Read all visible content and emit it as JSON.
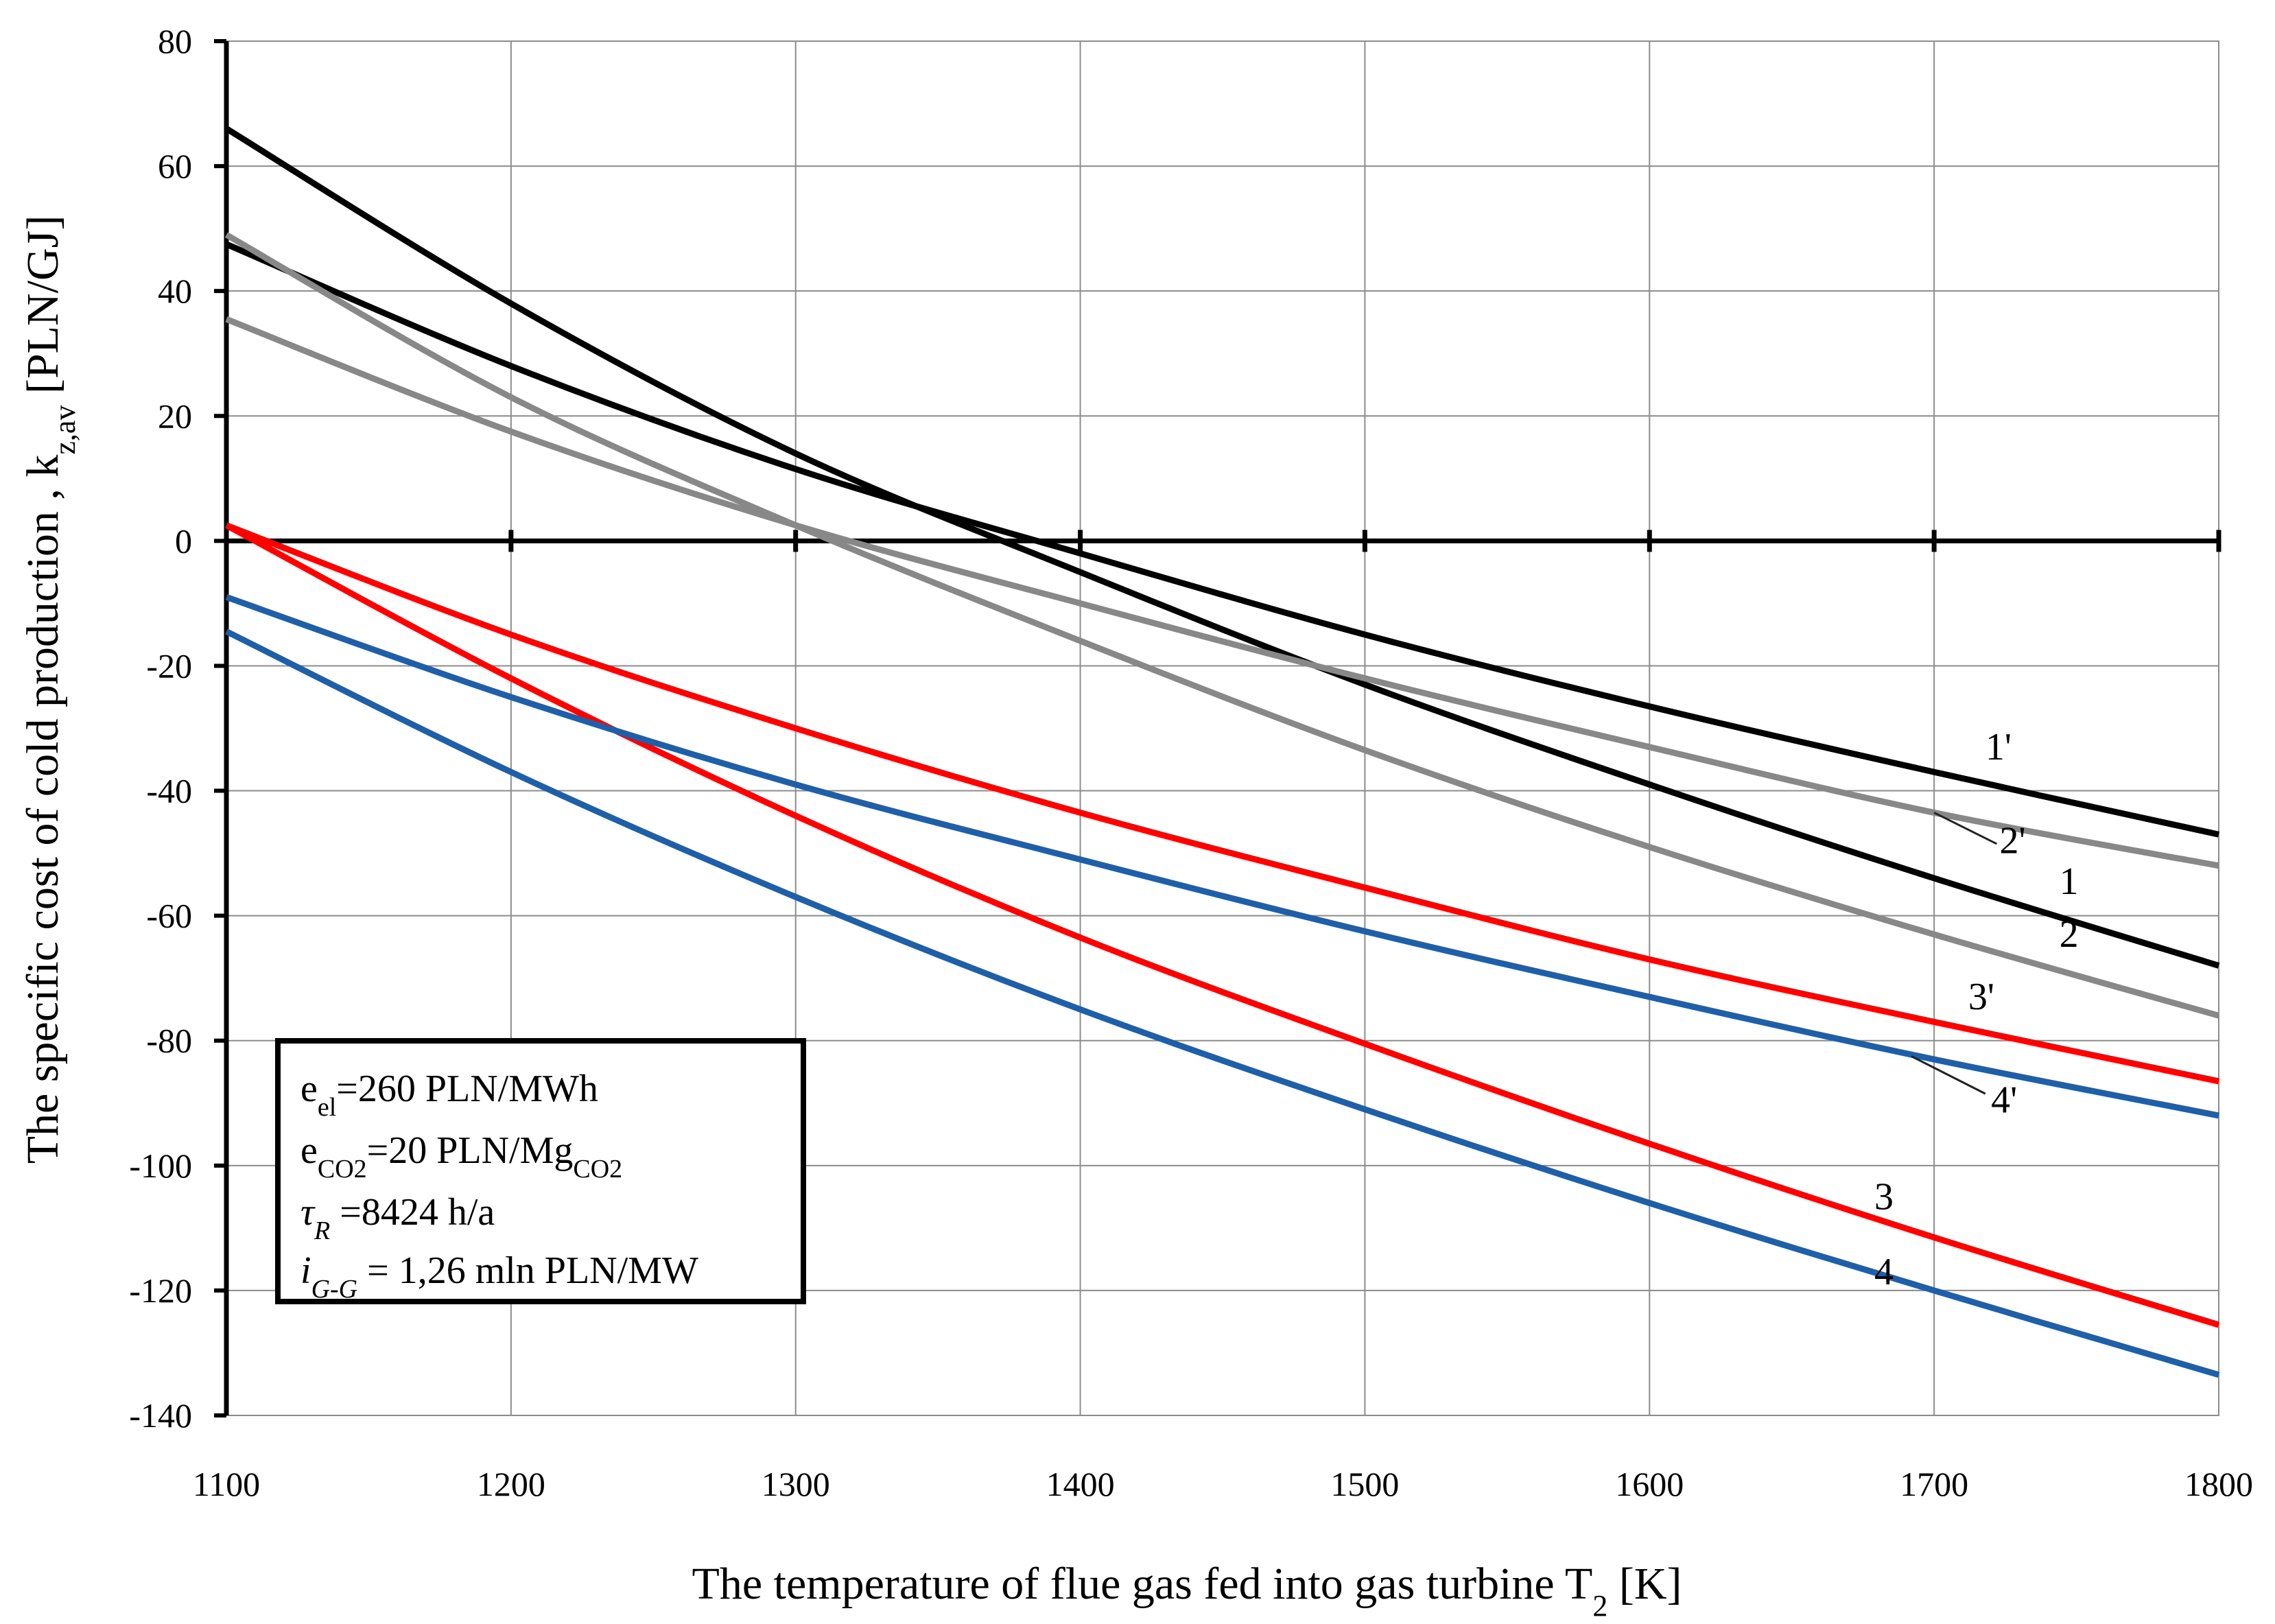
{
  "chart_data": {
    "type": "line",
    "title": "",
    "xlabel": "The temperature of flue gas fed into gas turbine T",
    "xlabel_sub": "2",
    "xlabel_unit": " [K]",
    "ylabel": "The specific cost of cold production , k",
    "ylabel_sub": "z,av",
    "ylabel_unit": " [PLN/GJ]",
    "xlim": [
      1100,
      1800
    ],
    "ylim": [
      -140,
      80
    ],
    "x_ticks": [
      "1100",
      "1200",
      "1300",
      "1400",
      "1500",
      "1600",
      "1700",
      "1800"
    ],
    "y_ticks": [
      "80",
      "60",
      "40",
      "20",
      "0",
      "-20",
      "-40",
      "-60",
      "-80",
      "-100",
      "-120",
      "-140"
    ],
    "grid": true,
    "series": [
      {
        "name": "1",
        "color": "#000000",
        "x": [
          1100,
          1200,
          1300,
          1400,
          1500,
          1600,
          1700,
          1800
        ],
        "values": [
          66,
          38,
          14,
          -5,
          -23,
          -39,
          -54,
          -68
        ]
      },
      {
        "name": "1'",
        "color": "#000000",
        "x": [
          1100,
          1200,
          1300,
          1400,
          1500,
          1600,
          1700,
          1800
        ],
        "values": [
          47.5,
          28,
          11.5,
          -2,
          -15,
          -26.5,
          -37,
          -47
        ]
      },
      {
        "name": "2",
        "color": "#888888",
        "x": [
          1100,
          1200,
          1300,
          1400,
          1500,
          1600,
          1700,
          1800
        ],
        "values": [
          49,
          23,
          2.5,
          -16,
          -33.5,
          -49,
          -63,
          -76
        ]
      },
      {
        "name": "2'",
        "color": "#888888",
        "x": [
          1100,
          1200,
          1300,
          1400,
          1500,
          1600,
          1700,
          1800
        ],
        "values": [
          35.5,
          17.5,
          2.5,
          -10,
          -22,
          -33,
          -43.5,
          -52
        ]
      },
      {
        "name": "3",
        "color": "#ff0000",
        "x": [
          1100,
          1200,
          1300,
          1400,
          1500,
          1600,
          1700,
          1800
        ],
        "values": [
          2.5,
          -22,
          -44,
          -63.5,
          -80.5,
          -96.5,
          -111.5,
          -125.5
        ]
      },
      {
        "name": "3'",
        "color": "#ff0000",
        "x": [
          1100,
          1200,
          1300,
          1400,
          1500,
          1600,
          1700,
          1800
        ],
        "values": [
          2.5,
          -15,
          -30,
          -43.5,
          -55.5,
          -67,
          -77,
          -86.5
        ]
      },
      {
        "name": "4",
        "color": "#1f5fa8",
        "x": [
          1100,
          1200,
          1300,
          1400,
          1500,
          1600,
          1700,
          1800
        ],
        "values": [
          -14.5,
          -37,
          -57,
          -75,
          -91,
          -106,
          -120,
          -133.5
        ]
      },
      {
        "name": "4'",
        "color": "#1f5fa8",
        "x": [
          1100,
          1200,
          1300,
          1400,
          1500,
          1600,
          1700,
          1800
        ],
        "values": [
          -9,
          -25,
          -39,
          -51,
          -62.5,
          -73,
          -83,
          -92
        ]
      }
    ],
    "annotations": [
      {
        "text": "1'",
        "x": 1718,
        "y": -35
      },
      {
        "text": "2'",
        "x": 1723,
        "y": -50
      },
      {
        "text": "1",
        "x": 1744,
        "y": -56.5
      },
      {
        "text": "2",
        "x": 1744,
        "y": -65
      },
      {
        "text": "3'",
        "x": 1712,
        "y": -75
      },
      {
        "text": "4'",
        "x": 1720,
        "y": -91.5
      },
      {
        "text": "3",
        "x": 1679,
        "y": -107
      },
      {
        "text": "4",
        "x": 1679,
        "y": -119
      }
    ],
    "legend_box": {
      "lines": [
        {
          "main": "e",
          "sub": "el",
          "rest": "=260 PLN/MWh"
        },
        {
          "main": "e",
          "sub": "CO2",
          "rest": "=20 PLN/Mg",
          "sub2": "CO2"
        },
        {
          "main": "τ",
          "sub": "R",
          "rest": " =8424 h/a"
        },
        {
          "main": "i",
          "sub": "G-G",
          "rest": " = 1,26 mln PLN/MW"
        }
      ]
    }
  }
}
